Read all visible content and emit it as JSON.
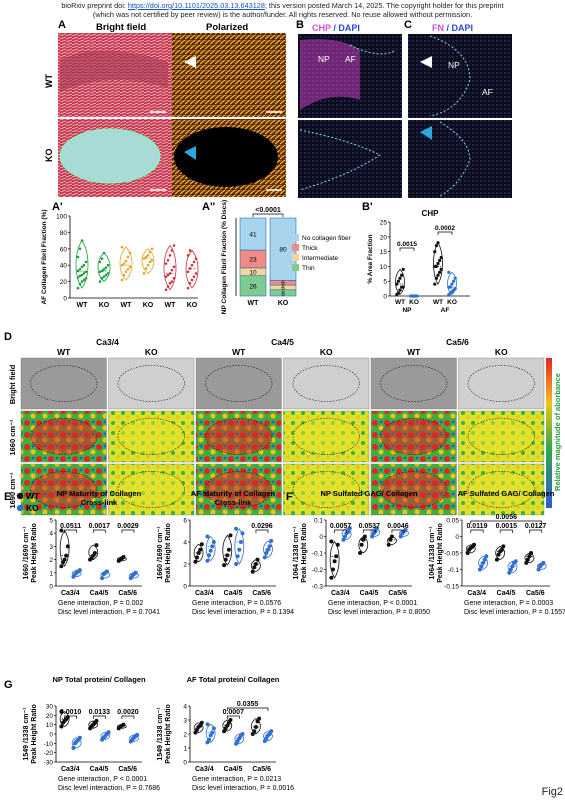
{
  "header": {
    "line1_a": "bioRxiv preprint doi: ",
    "line1_doi": "https://doi.org/10.1101/2025.03.13.643128",
    "line1_b": "; this version posted March 14, 2025. The copyright holder for this preprint",
    "line2": "(which was not certified by peer review) is the author/funder. All rights reserved. No reuse allowed without permission."
  },
  "panels": {
    "A": "A",
    "A1": "A'",
    "A2": "A''",
    "B": "B",
    "B1": "B'",
    "C": "C",
    "D": "D",
    "E": "E",
    "F": "F",
    "G": "G"
  },
  "panelA": {
    "bright": "Bright field",
    "polarized": "Polarized",
    "wt": "WT",
    "ko": "KO"
  },
  "panelB": {
    "chp": "CHP",
    "dapi": " / DAPI",
    "np": "NP",
    "af": "AF"
  },
  "panelC": {
    "fn": "FN",
    "dapi": " / DAPI",
    "np": "NP",
    "af": "AF"
  },
  "panelD": {
    "levels": [
      "Ca3/4",
      "Ca4/5",
      "Ca5/6"
    ],
    "genotypes": [
      "WT",
      "KO",
      "WT",
      "KO",
      "WT",
      "KO"
    ],
    "rows": [
      "Bright field",
      "1660 cm⁻¹",
      "1690 cm⁻¹"
    ],
    "colorbar": "Relative magnitude of aborbance"
  },
  "legend": {
    "wt": "WT",
    "ko": "KO"
  },
  "colors": {
    "wt": "#111111",
    "ko": "#2e6fd1",
    "green": "#1f9e3a",
    "yellow": "#e0a526",
    "red": "#c8323a",
    "chp": "#d54fd1",
    "fn": "#c64fd3"
  },
  "chart_data": [
    {
      "id": "A1",
      "type": "scatter",
      "ylabel": "AF Collagen Fibril Fraction (%)",
      "ylim": [
        0,
        100
      ],
      "yticks": [
        0,
        20,
        40,
        60,
        80,
        100
      ],
      "categories": [
        "WT",
        "KO",
        "WT",
        "KO",
        "WT",
        "KO"
      ],
      "series": [
        {
          "color": "green",
          "values": [
            [
              12,
              17,
              20,
              22,
              24,
              25,
              27,
              28,
              30,
              32,
              33,
              35,
              38,
              40,
              44,
              50,
              60,
              70
            ],
            [
              20,
              24,
              26,
              28,
              30,
              32,
              33,
              35,
              37,
              40,
              44,
              48,
              55
            ]
          ]
        },
        {
          "color": "yellow",
          "values": [
            [
              22,
              28,
              32,
              35,
              38,
              40,
              42,
              45,
              50,
              55,
              62
            ],
            [
              30,
              36,
              40,
              44,
              46,
              48,
              50,
              52,
              56,
              60
            ]
          ]
        },
        {
          "color": "red",
          "values": [
            [
              10,
              14,
              18,
              20,
              24,
              26,
              28,
              30,
              34,
              38,
              42,
              46,
              52,
              58,
              64
            ],
            [
              12,
              18,
              22,
              26,
              30,
              32,
              36,
              40,
              44,
              48,
              52,
              58
            ]
          ]
        }
      ]
    },
    {
      "id": "A2",
      "type": "bar",
      "ylabel": "NP Collagen Fibril Fraction (% Discs)",
      "categories": [
        "WT",
        "KO"
      ],
      "pvalue": "<0.0001",
      "stack_order": [
        "Thin",
        "Intermediate",
        "Thick",
        "No collagen fiber"
      ],
      "series": [
        {
          "name": "Thin",
          "values": [
            26,
            8
          ]
        },
        {
          "name": "Intermediate",
          "values": [
            10,
            6
          ]
        },
        {
          "name": "Thick",
          "values": [
            23,
            6
          ]
        },
        {
          "name": "No collagen fiber",
          "values": [
            41,
            80
          ]
        }
      ],
      "labels": [
        [
          "26",
          "10",
          "23",
          "41"
        ],
        [
          "8",
          "6",
          "6",
          "80"
        ]
      ],
      "legend_order": [
        "No collagen fiber",
        "Thick",
        "Intermediate",
        "Thin"
      ],
      "colors": {
        "No collagen fiber": "#a8d4ee",
        "Thick": "#ef8a86",
        "Intermediate": "#f4d79c",
        "Thin": "#7ecb92"
      }
    },
    {
      "id": "B1",
      "type": "scatter",
      "title": "CHP",
      "ylabel": "% Area Fraction",
      "ylim": [
        0,
        25
      ],
      "yticks": [
        0,
        5,
        10,
        15,
        20,
        25
      ],
      "categories": [
        "WT",
        "KO",
        "WT",
        "KO"
      ],
      "groups": [
        "NP",
        "AF"
      ],
      "values": [
        [
          0.5,
          1,
          2,
          3,
          3,
          4,
          5,
          6,
          7,
          9
        ],
        [
          0,
          0,
          0,
          0,
          0,
          0,
          0,
          0
        ],
        [
          4,
          6,
          7,
          8,
          9,
          10,
          10,
          11,
          12,
          13,
          15,
          17,
          18
        ],
        [
          0.5,
          1,
          1.5,
          2,
          2.5,
          3,
          3,
          4,
          5,
          6,
          8
        ]
      ],
      "pvalues": [
        "0.0015",
        "0.0002"
      ]
    },
    {
      "id": "E1",
      "type": "scatter",
      "title_lines": [
        "NP Maturity of Collagen",
        "Cross-link"
      ],
      "ylabel": "1660 /1690 cm⁻¹",
      "ylim": [
        0,
        5
      ],
      "yticks": [
        0,
        1,
        2,
        3,
        4,
        5
      ],
      "categories": [
        "Ca3/4",
        "Ca4/5",
        "Ca5/6"
      ],
      "wt": [
        [
          1.5,
          1.8,
          2.0,
          2.3,
          3.0,
          4.2
        ],
        [
          2.0,
          2.1,
          2.3,
          2.5,
          3.1
        ],
        [
          1.9,
          2.0,
          2.1,
          2.2
        ]
      ],
      "ko": [
        [
          0.7,
          0.9,
          1.0,
          1.1,
          1.2
        ],
        [
          0.6,
          0.9,
          1.0,
          1.1
        ],
        [
          0.6,
          0.8,
          0.9,
          1.0
        ]
      ],
      "pvalues": [
        "0.0511",
        "0.0017",
        "0.0029"
      ],
      "footer": [
        "Gene interaction, P = 0.002",
        "Disc level interaction, P = 0.7041"
      ]
    },
    {
      "id": "E2",
      "type": "scatter",
      "title_lines": [
        "AF Maturity of Collagen",
        "Cross-link"
      ],
      "ylabel": "1660 /1690 cm⁻¹",
      "ylim": [
        0,
        6
      ],
      "yticks": [
        0,
        2,
        4,
        6
      ],
      "categories": [
        "Ca3/4",
        "Ca4/5",
        "Ca5/6"
      ],
      "wt": [
        [
          2.2,
          2.6,
          3.0,
          3.3,
          3.8
        ],
        [
          1.9,
          2.4,
          2.8,
          3.3,
          4.6
        ],
        [
          1.3,
          1.7,
          2.0,
          2.4
        ]
      ],
      "ko": [
        [
          2.3,
          2.8,
          3.2,
          3.6,
          4.0,
          4.5
        ],
        [
          2.0,
          2.7,
          3.3,
          4.0,
          4.8,
          5.2
        ],
        [
          2.6,
          3.0,
          3.3,
          3.6,
          4.1
        ]
      ],
      "pvalues": [
        "0.0296"
      ],
      "pvalue_index": [
        2
      ],
      "footer": [
        "Gene interaction, P = 0.0576",
        "Disc level interaction, P = 0.1394"
      ]
    },
    {
      "id": "F1",
      "type": "scatter",
      "title_lines": [
        "NP Sulfated GAG/ Collagen"
      ],
      "ylabel": "1064 /1338 cm⁻¹",
      "ylim": [
        -0.3,
        0.1
      ],
      "yticks": [
        -0.3,
        -0.2,
        -0.1,
        0.0,
        0.1
      ],
      "categories": [
        "Ca3/4",
        "Ca4/5",
        "Ca5/6"
      ],
      "wt": [
        [
          -0.25,
          -0.2,
          -0.15,
          -0.12,
          -0.05,
          -0.03
        ],
        [
          -0.1,
          -0.05,
          -0.02,
          0.0
        ],
        [
          -0.05,
          -0.02,
          0.0
        ]
      ],
      "ko": [
        [
          -0.02,
          0.0,
          0.02,
          0.03,
          0.05
        ],
        [
          0.0,
          0.02,
          0.03,
          0.05
        ],
        [
          0.0,
          0.02,
          0.03,
          0.04
        ]
      ],
      "pvalues": [
        "0.0057",
        "0.0537",
        "0.0046"
      ],
      "footer": [
        "Gene interaction, P < 0.0001",
        "Disc level interaction, P = 0.8050"
      ]
    },
    {
      "id": "F2",
      "type": "scatter",
      "title_lines": [
        "AF Sulfated GAG/ Collagen"
      ],
      "ylabel": "1064 /1338 cm⁻¹",
      "ylim": [
        -0.15,
        0.05
      ],
      "yticks": [
        -0.15,
        -0.1,
        -0.05,
        0.0,
        0.05
      ],
      "categories": [
        "Ca3/4",
        "Ca4/5",
        "Ca5/6"
      ],
      "wt": [
        [
          -0.05,
          -0.04,
          -0.035,
          -0.03,
          -0.025
        ],
        [
          -0.07,
          -0.055,
          -0.045,
          -0.04,
          -0.03
        ],
        [
          -0.08,
          -0.07,
          -0.06,
          -0.05
        ]
      ],
      "ko": [
        [
          -0.1,
          -0.09,
          -0.08,
          -0.07,
          -0.06
        ],
        [
          -0.11,
          -0.1,
          -0.09,
          -0.08,
          -0.075
        ],
        [
          -0.1,
          -0.09,
          -0.085,
          -0.08
        ]
      ],
      "pvalues": [
        "0.0119",
        "0.0015",
        "0.0127"
      ],
      "extra_pvalue": "0.0056",
      "footer": [
        "Gene interaction, P = 0.0003",
        "Disc level interaction, P = 0.1557"
      ]
    },
    {
      "id": "G1",
      "type": "scatter",
      "title_lines": [
        "NP Total protein/ Collagen"
      ],
      "ylabel": "1549 /1338 cm⁻¹",
      "ylim": [
        -30,
        30
      ],
      "yticks": [
        -30,
        -20,
        -10,
        0,
        10,
        20,
        30
      ],
      "categories": [
        "Ca3/4",
        "Ca4/5",
        "Ca5/6"
      ],
      "wt": [
        [
          8,
          12,
          14,
          16,
          18,
          24
        ],
        [
          6,
          8,
          10,
          12,
          14
        ],
        [
          6,
          8,
          9,
          10
        ]
      ],
      "ko": [
        [
          -15,
          -10,
          -8,
          -6,
          -4
        ],
        [
          -6,
          -4,
          -2,
          0,
          2
        ],
        [
          -8,
          -6,
          -4,
          -2,
          -1
        ]
      ],
      "pvalues": [
        "0.0010",
        "0.0133",
        "0.0020"
      ],
      "footer": [
        "Gene interaction, P < 0.0001",
        "Disc level interaction, P = 0.7686"
      ]
    },
    {
      "id": "G2",
      "type": "scatter",
      "title_lines": [
        "AF Total protein/ Collagen"
      ],
      "ylabel": "1549 /1338 cm⁻¹",
      "ylim": [
        0,
        4
      ],
      "yticks": [
        0,
        1,
        2,
        3,
        4
      ],
      "categories": [
        "Ca3/4",
        "Ca4/5",
        "Ca5/6"
      ],
      "wt": [
        [
          2.1,
          2.3,
          2.5,
          2.6,
          2.8
        ],
        [
          2.2,
          2.4,
          2.6,
          2.8,
          3.0
        ],
        [
          2.0,
          2.2,
          2.5,
          2.9,
          3.1
        ]
      ],
      "ko": [
        [
          1.4,
          1.6,
          1.9,
          2.1,
          2.4,
          2.7
        ],
        [
          1.3,
          1.5,
          1.7,
          1.9,
          2.0
        ],
        [
          1.5,
          1.7,
          1.9,
          2.0,
          2.2
        ]
      ],
      "pvalues": [
        "0.0007",
        "0.0355"
      ],
      "pvalue_index": [
        1,
        2
      ],
      "footer": [
        "Gene interaction, P = 0.0213",
        "Disc level interaction, P = 0.0016"
      ]
    }
  ],
  "figure_label": "Fig2"
}
